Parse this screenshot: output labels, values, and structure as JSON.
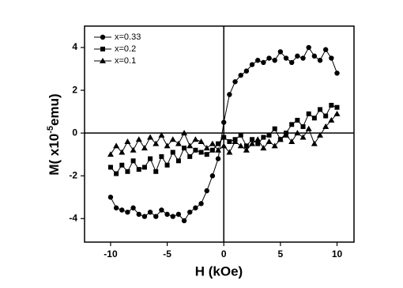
{
  "chart_data": {
    "type": "scatter",
    "xlabel": "H (kOe)",
    "ylabel_parts": [
      "M( x10",
      "-5",
      "emu)"
    ],
    "xlim": [
      -12.3,
      11.5
    ],
    "ylim": [
      -5.1,
      5
    ],
    "xticks": [
      -10,
      -5,
      0,
      5,
      10
    ],
    "yticks": [
      -4,
      -2,
      0,
      2,
      4
    ],
    "legend": "upper left",
    "x": [
      -10,
      -9.5,
      -9,
      -8.5,
      -8,
      -7.5,
      -7,
      -6.5,
      -6,
      -5.5,
      -5,
      -4.5,
      -4,
      -3.5,
      -3,
      -2.5,
      -2,
      -1.5,
      -1,
      -0.5,
      0,
      0.5,
      1,
      1.5,
      2,
      2.5,
      3,
      3.5,
      4,
      4.5,
      5,
      5.5,
      6,
      6.5,
      7,
      7.5,
      8,
      8.5,
      9,
      9.5,
      10
    ],
    "series": [
      {
        "name": "x=0.33",
        "color": "#000000",
        "marker": "circle",
        "values": [
          -3.0,
          -3.5,
          -3.6,
          -3.7,
          -3.5,
          -3.8,
          -3.9,
          -3.7,
          -3.9,
          -3.6,
          -3.8,
          -3.9,
          -3.8,
          -4.1,
          -3.7,
          -3.5,
          -3.3,
          -2.7,
          -2.0,
          -1.2,
          0.5,
          1.8,
          2.4,
          2.7,
          2.9,
          3.2,
          3.4,
          3.3,
          3.5,
          3.4,
          3.8,
          3.5,
          3.3,
          3.6,
          3.5,
          4.0,
          3.6,
          3.4,
          3.9,
          3.5,
          2.8
        ]
      },
      {
        "name": "x=0.2",
        "color": "#000000",
        "marker": "square",
        "values": [
          -1.6,
          -1.9,
          -1.5,
          -1.8,
          -1.3,
          -1.7,
          -1.6,
          -1.2,
          -1.8,
          -1.1,
          -1.5,
          -0.9,
          -1.3,
          -0.7,
          -1.1,
          -0.8,
          -0.9,
          -1.0,
          -0.8,
          -0.5,
          -0.2,
          -0.4,
          -0.3,
          -0.1,
          -0.6,
          -0.3,
          -0.5,
          -0.2,
          -0.1,
          0.2,
          -0.3,
          0.0,
          0.4,
          0.6,
          0.3,
          0.9,
          0.7,
          1.1,
          0.8,
          1.3,
          1.2
        ]
      },
      {
        "name": "x=0.1",
        "color": "#000000",
        "marker": "triangle",
        "values": [
          -1.0,
          -0.6,
          -0.9,
          -0.4,
          -0.8,
          -0.3,
          -0.7,
          -0.2,
          -0.5,
          -0.1,
          -0.6,
          -0.3,
          -0.5,
          0.0,
          -0.6,
          -0.3,
          -0.4,
          -0.7,
          -0.5,
          -0.8,
          -0.6,
          -0.9,
          -0.4,
          -0.6,
          -0.8,
          -0.5,
          -0.3,
          -0.7,
          -0.4,
          -0.6,
          -0.3,
          -0.1,
          -0.4,
          0.0,
          -0.2,
          0.2,
          -0.5,
          -0.1,
          0.3,
          0.6,
          0.9
        ]
      }
    ]
  }
}
